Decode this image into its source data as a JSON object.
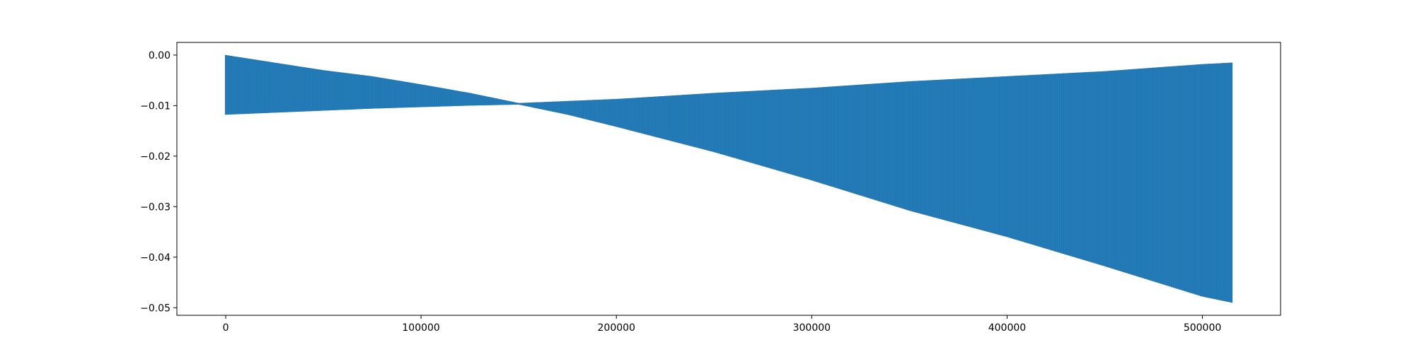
{
  "chart_data": {
    "type": "area",
    "title": "",
    "xlabel": "",
    "ylabel": "",
    "xlim": [
      -25000,
      540000
    ],
    "ylim": [
      -0.0515,
      0.0025
    ],
    "grid": false,
    "legend": "none",
    "x_ticks": [
      {
        "value": 0,
        "label": "0"
      },
      {
        "value": 100000,
        "label": "100000"
      },
      {
        "value": 200000,
        "label": "200000"
      },
      {
        "value": 300000,
        "label": "300000"
      },
      {
        "value": 400000,
        "label": "400000"
      },
      {
        "value": 500000,
        "label": "500000"
      }
    ],
    "y_ticks": [
      {
        "value": 0.0,
        "label": "0.00"
      },
      {
        "value": -0.01,
        "label": "−0.01"
      },
      {
        "value": -0.02,
        "label": "−0.02"
      },
      {
        "value": -0.03,
        "label": "−0.03"
      },
      {
        "value": -0.04,
        "label": "−0.04"
      },
      {
        "value": -0.05,
        "label": "−0.05"
      }
    ],
    "series": [
      {
        "color": "#1f77b4",
        "x": [
          0,
          25000,
          50000,
          75000,
          100000,
          125000,
          150000,
          175000,
          200000,
          250000,
          300000,
          350000,
          400000,
          450000,
          500000,
          515000
        ],
        "upper": [
          0.0,
          -0.0015,
          -0.003,
          -0.0042,
          -0.0058,
          -0.0075,
          -0.0095,
          -0.0091,
          -0.0087,
          -0.0075,
          -0.0065,
          -0.0052,
          -0.0042,
          -0.0032,
          -0.0018,
          -0.0015
        ],
        "lower": [
          -0.0118,
          -0.0114,
          -0.011,
          -0.0106,
          -0.0103,
          -0.01,
          -0.0098,
          -0.0118,
          -0.0142,
          -0.0192,
          -0.0248,
          -0.0308,
          -0.036,
          -0.0418,
          -0.0478,
          -0.049
        ]
      }
    ]
  }
}
